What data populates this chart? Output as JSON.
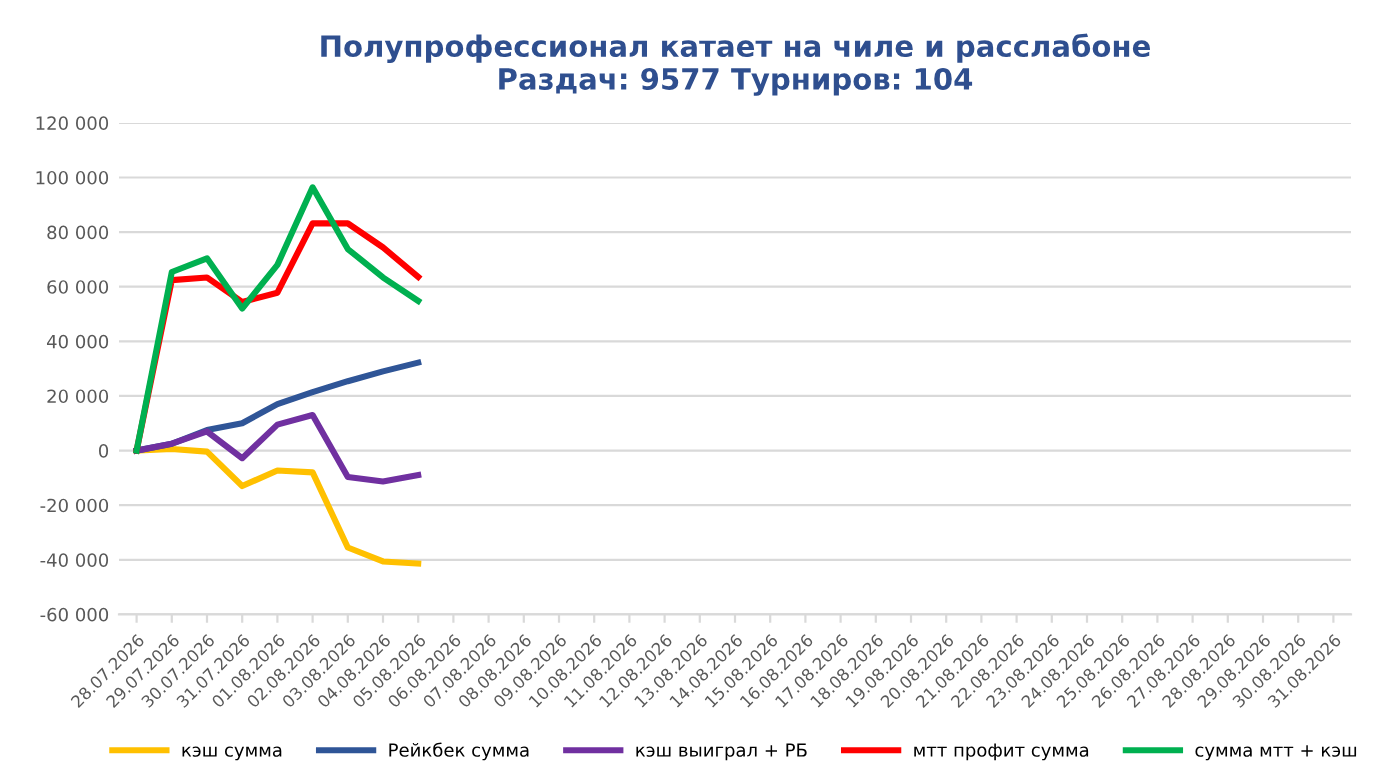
{
  "chart_data": {
    "type": "line",
    "title": "Полупрофессионал катает на чиле и расслабоне\nРаздач: 9577 Турниров: 104",
    "categories": [
      "28.07.2026",
      "29.07.2026",
      "30.07.2026",
      "31.07.2026",
      "01.08.2026",
      "02.08.2026",
      "03.08.2026",
      "04.08.2026",
      "05.08.2026",
      "06.08.2026",
      "07.08.2026",
      "08.08.2026",
      "09.08.2026",
      "10.08.2026",
      "11.08.2026",
      "12.08.2026",
      "13.08.2026",
      "14.08.2026",
      "15.08.2026",
      "16.08.2026",
      "17.08.2026",
      "18.08.2026",
      "19.08.2026",
      "20.08.2026",
      "21.08.2026",
      "22.08.2026",
      "23.08.2026",
      "24.08.2026",
      "25.08.2026",
      "26.08.2026",
      "27.08.2026",
      "28.08.2026",
      "29.08.2026",
      "30.08.2026",
      "31.08.2026"
    ],
    "series": [
      {
        "name": "кэш сумма",
        "color": "#ffc000",
        "values": [
          0,
          600,
          -400,
          -13000,
          -7300,
          -8000,
          -35500,
          -40600,
          -41400,
          null,
          null,
          null,
          null,
          null,
          null,
          null,
          null,
          null,
          null,
          null,
          null,
          null,
          null,
          null,
          null,
          null,
          null,
          null,
          null,
          null,
          null,
          null,
          null,
          null,
          null
        ]
      },
      {
        "name": "Рейкбек сумма",
        "color": "#2f5597",
        "values": [
          0,
          2500,
          7500,
          10000,
          17000,
          21400,
          25400,
          29000,
          32200,
          null,
          null,
          null,
          null,
          null,
          null,
          null,
          null,
          null,
          null,
          null,
          null,
          null,
          null,
          null,
          null,
          null,
          null,
          null,
          null,
          null,
          null,
          null,
          null,
          null,
          null
        ]
      },
      {
        "name": "кэш выиграл + РБ",
        "color": "#7030a0",
        "values": [
          0,
          2500,
          7000,
          -2800,
          9500,
          13000,
          -9700,
          -11300,
          -9000,
          null,
          null,
          null,
          null,
          null,
          null,
          null,
          null,
          null,
          null,
          null,
          null,
          null,
          null,
          null,
          null,
          null,
          null,
          null,
          null,
          null,
          null,
          null,
          null,
          null,
          null
        ]
      },
      {
        "name": "мтт профит сумма",
        "color": "#ff0000",
        "values": [
          0,
          62400,
          63400,
          54400,
          57800,
          83200,
          83200,
          74400,
          63600,
          null,
          null,
          null,
          null,
          null,
          null,
          null,
          null,
          null,
          null,
          null,
          null,
          null,
          null,
          null,
          null,
          null,
          null,
          null,
          null,
          null,
          null,
          null,
          null,
          null,
          null
        ]
      },
      {
        "name": "сумма мтт + кэш",
        "color": "#00b050",
        "values": [
          0,
          65400,
          70400,
          52000,
          68000,
          96400,
          73800,
          63400,
          54800,
          null,
          null,
          null,
          null,
          null,
          null,
          null,
          null,
          null,
          null,
          null,
          null,
          null,
          null,
          null,
          null,
          null,
          null,
          null,
          null,
          null,
          null,
          null,
          null,
          null,
          null
        ]
      }
    ],
    "ylim": [
      -60000,
      120000
    ],
    "yticks": [
      {
        "value": -60000,
        "label": "-60 000"
      },
      {
        "value": -40000,
        "label": "-40 000"
      },
      {
        "value": -20000,
        "label": "-20 000"
      },
      0,
      {
        "value": 20000,
        "label": "20 000"
      },
      {
        "value": 40000,
        "label": "40 000"
      },
      {
        "value": 60000,
        "label": "60 000"
      },
      {
        "value": 80000,
        "label": "80 000"
      },
      {
        "value": 100000,
        "label": "100 000"
      },
      {
        "value": 120000,
        "label": "120 000"
      }
    ],
    "grid": "y",
    "legend": "bottom",
    "marker": "none",
    "line_style": "solid"
  }
}
